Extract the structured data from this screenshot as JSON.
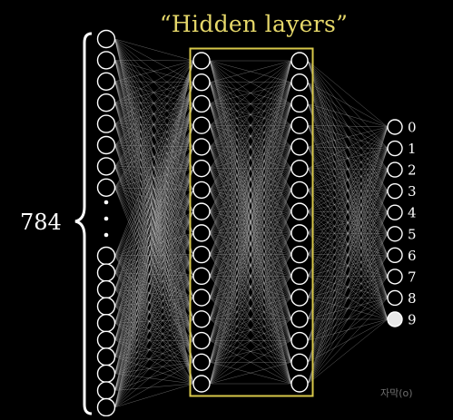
{
  "labels": {
    "hidden_layers": "“Hidden layers”",
    "input_count": "784",
    "watermark": "자막(o)"
  },
  "network": {
    "input_visible_neurons": 18,
    "hidden_layer_1_neurons": 16,
    "hidden_layer_2_neurons": 16,
    "output_digits": [
      "0",
      "1",
      "2",
      "3",
      "4",
      "5",
      "6",
      "7",
      "8",
      "9"
    ],
    "active_output_digit": "9"
  },
  "colors": {
    "background": "#000000",
    "highlight_box": "#d8c84a",
    "title": "#e6d86a",
    "neuron_stroke": "#ffffff",
    "active_neuron_fill": "#e8e8e8",
    "edge": "#cccccc"
  }
}
